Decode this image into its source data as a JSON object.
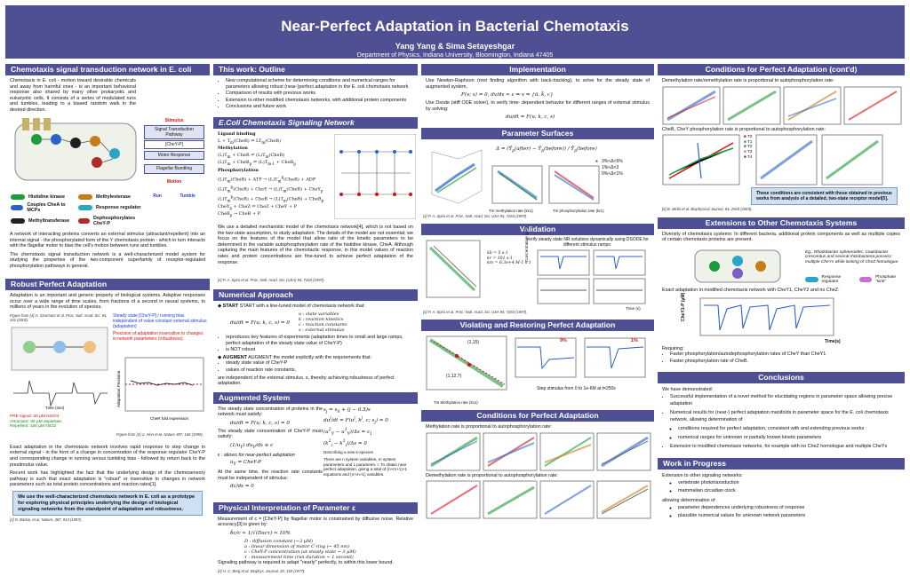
{
  "header": {
    "title": "Near-Perfect Adaptation in Bacterial Chemotaxis",
    "authors": "Yang Yang & Sima Setayeshgar",
    "affiliation": "Department of Physics, Indiana University, Bloomington, Indiana  47405"
  },
  "col1": {
    "network": {
      "heading": "Chemotaxis signal transduction network in E. coli",
      "intro": "Chemotaxis in E. coli - motion toward desirable chemicals and away from harmful ones - is an important behavioral response also shared by many other prokaryotic and eukaryotic cells.  It consists of a series of modulated runs and tumbles, leading to a biased random walk in the desired direction.",
      "pathway": {
        "stimulus": "Stimulus",
        "signal": "Signal Transduction Pathway",
        "cheyp": "[CheY-P]",
        "motor": "Motor Response",
        "flagellar": "Flagellar Bundling",
        "motion": "Motion",
        "run": "Run",
        "tumble": "Tumble"
      },
      "legend": [
        {
          "tag": "CheA",
          "label": "Histidine kinase",
          "color": "#1e9b3a"
        },
        {
          "tag": "CheW",
          "label": "Couples CheA to MCPs",
          "color": "#2a62c9"
        },
        {
          "tag": "CheR",
          "label": "Methyltransferase",
          "color": "#202020"
        },
        {
          "tag": "CheB",
          "label": "Methylesterase",
          "color": "#c77b1a"
        },
        {
          "tag": "CheY",
          "label": "Response regulator",
          "color": "#2aa4c9"
        },
        {
          "tag": "CheZ",
          "label": "Dephosphorylates CheY-P",
          "color": "#b12a2a"
        }
      ],
      "para2": "A network of interacting proteins converts an external stimulus (attractant/repellent) into an internal signal - the phosphorylated form of the Y chemotaxis protein - which in turn interacts with the flagellar motor to bias the cell's motion between runs and tumbles.",
      "para3": "The chemotaxis signal transduction network is a well-characterized model system for studying the properties of the two-component superfamily of receptor-regulated phosphorylation pathways in general."
    },
    "robust": {
      "heading": "Robust Perfect Adaptation",
      "intro": "Adaptation is an important and generic property of biological systems. Adaptive responses occur over a wide range of time scales, from fractions of a second in neural systems, to millions of years in the evolution of species.",
      "fig_cite": "Figure from [4] H. Szurmant et al, Proc. Natl. Acad. Sci. 94, 101 (2002).",
      "steady_note": "Steady state [CheY-P] / running bias independent of value constant external stimulus (adaptation)",
      "precision_note": "Precision of adaptation insensitive to changes in network parameters (robustness)",
      "pre_signal": "PRE signal: 30 µM NiSO4",
      "attractant": "Attractant: 30 µM aspartate",
      "repellent": "Repellent: 100 µM NiCl2",
      "fig2_cite": "Figure from [2] U. Alon et al, Nature 397, 168 (1999).",
      "xaxis": "CheR fold expression",
      "yaxis": "Adaptation Precision",
      "time_label": "Time (min)",
      "para1": "Exact adaptation in the chemotaxis network involves rapid response to step change in external signal - in the form of a change in concentration of the response regulator CheY-P and corresponding change in running versus tumbling bias - followed by return back to the prestimulus value.",
      "para2": "Recent work has highlighted the fact that the underlying design of the chemosensory pathway is such that exact adaptation is \"robust\" or insensitive to changes in network parameters such as total protein concentrations and reaction rates[1].",
      "highlight": "We use the well-characterized chemotaxis network in E. coli as a prototype for exploring physical principles underlying the design of biological signaling networks from the standpoint of adaptation and robustness.",
      "cite": "[1] N. Barkai, et al. Nature, 387, 913 (1997)."
    }
  },
  "col2": {
    "outline": {
      "heading": "This work: Outline",
      "items": [
        "New computational scheme for determining conditions and numerical ranges for parameters allowing robust (near-)perfect adaptation in the E. coli chemotaxis network",
        "Comparison of results with previous works",
        "Extension to other modified chemotaxis networks, with additional protein components",
        "Conclusions and future work"
      ]
    },
    "signaling": {
      "heading": "E.Coli Chemotaxis Signaling Network",
      "labels": [
        "Ligand binding",
        "Methylation",
        "Phosphorylation"
      ],
      "para": "We use a detailed mechanistic model of the chemotaxis network[4], which is not based on the two-state assumption, to study adaptation. The details of the model are not essential; we focus on the features of the model that allow ratio of the kinetic parameters to be determined in the variable autophosphorylation rate of the histidine kinase, CheA. Although capturing the main features of the chemotactic response, in this model values of reaction rates and protein concentrations are fine-tuned to achieve perfect adaptation of the response.",
      "cite": "[4] P. A. Spiro et al. Proc. Natl. Acad. Sci. (USA) 94, 7263 (1997)."
    },
    "numerical": {
      "heading": "Numerical Approach",
      "start": "START with a line-tuned model of chemotaxis network that:",
      "vars": [
        "u : state variables",
        "k : reaction kinetics",
        "c : reaction constants",
        "s : external stimulus"
      ],
      "bullets": [
        "reproduces key features of experiments (adaptation times to small and large ramps, perfect adaptation of the steady state value of CheY-P)",
        "is NOT robust"
      ],
      "augment": "AUGMENT the model explicitly with the requirements that:",
      "aug_items": [
        "steady state value of CheY-P",
        "values of reaction rate constants,"
      ],
      "aug_tail": "are independent of the external stimulus, s, thereby achieving robustness of perfect adaptation."
    },
    "augmented": {
      "heading": "Augmented System",
      "text1": "The steady state concentration of proteins in the network must satisfy:",
      "text2": "The steady state concentration of CheY-P must satisfy:",
      "eps_note": "ε : allows for near-perfect adaptation",
      "side_note": "Describing a new k-species",
      "side_note2": "There are n system variables, m system parameters and 1 parameter, r. To obtain near perfect adaptation, giving a total of (n+m+1)+1 equations and (n+m+1) variables.",
      "text3": "At the same time, the reaction rate constants must be independent of stimulus:"
    },
    "physical": {
      "heading": "Physical Interpretation of Parameter ε",
      "text": "Measurement of c = [CheY-P] by flagellar motor is constrained by diffusive noise. Relative accuracy[3] is given by:",
      "defs": [
        "D : diffusion constant (~3 µM)",
        "a : linear dimension of motor C-ring (~ 45 nm)",
        "c : CheY-P concentration (at steady state ~ 3 µM)",
        "τ : measurement time (run duration ~ 1 second)"
      ],
      "tail": "Signaling pathway is required to adapt \"nearly\" perfectly, to within this lower bound.",
      "cite": "[3] H. C. Berg et al. Biophys. Journal, 20, 193 (1977)."
    }
  },
  "col3": {
    "implementation": {
      "heading": "Implementation",
      "text1": "Use Newton-Raphson (root finding algorithm with back-tracking), to solve for the steady state of augmented system,",
      "text2": "Use Dsode (stiff ODE solver), to verify time- dependent behavior for different ranges of external stimulus  by solving:"
    },
    "surfaces": {
      "heading": "Parameter Surfaces",
      "legend": [
        "3%<Δ<5%",
        "1%<Δ<3",
        "0%<Δ<1%"
      ],
      "xlab1": "Tm methylation rate (ks1)",
      "xlab2": "Tm phosphorylation rate (kr1)",
      "cite": "[4] P. A. Spiro et al. Proc. Natl. Acad. Sci. USA 94, 7263 (1997)."
    },
    "validation": {
      "heading": "Validation",
      "caption": "Verify steady state NR solutions dynamically using DSODE for different stimulus ramps:",
      "ks": [
        "kb = 5 s-1",
        "kr = 101 s-1",
        "km = 6.3e+4 M-1 s-1"
      ],
      "ylab": "Concentration (µM)",
      "xlab": "Time (s)",
      "cite": "[4] P. A. Spiro et al. Proc. Natl. Acad. Sci. USA 94, 7263 (1997)."
    },
    "violating": {
      "heading": "Violating and Restoring Perfect Adaptation",
      "labels": [
        "(1,15)",
        "(1,12.7)",
        "9%",
        "1%"
      ],
      "caption": "Step stimulus from 0 to 1e-6M at t=250s",
      "xlab": "Tm Methylation rate (ks1)"
    },
    "conditions": {
      "heading": "Conditions for Perfect Adaptation",
      "text1": "Methylation rate is proportional to autophosphorylation rate:",
      "text2": "Demethylation rate is proportional to autophosphorylation rate:"
    }
  },
  "col4": {
    "conditions2": {
      "heading": "Conditions for Perfect Adaptation (cont'd)",
      "text1": "Demethylation rate/remethylation rate is proportional to autophosphorylation rate:",
      "text2": "CheB, CheY phosphorylation rate is proportional to autophosphorylation rate:",
      "legend": [
        "T0",
        "T1",
        "T2",
        "T3",
        "T4"
      ],
      "highlight": "These conditions are consistent with those obtained in previous works from analysis of a detailed, two-state receptor model[5].",
      "cite": "[5] B. Mello et al. Biophysical Journal, 84, 2943 (2003)."
    },
    "extensions": {
      "heading": "Extensions to Other Chemotaxis Systems",
      "text1": "Diversity of chemotaxis systems: In different bacteria, additional protein components as well as multiple copies of certain chemotaxis proteins are present.",
      "figcap": "Eg., Rhodobacter sphaeroides, Caulobacter crescentus and several rhizobacteria possess multiple CheYs while lacking of CheZ homologue.",
      "reg_label": "Response regulator",
      "sink_label": "Phosphate \"sink\"",
      "text2": "Exact adaptation in modified chemotaxis network with CheY1, CheY2 and no CheZ:",
      "ylab": "CheY1-P (µM)",
      "xlab": "Time(s)",
      "requiring": "Requiring:",
      "req_items": [
        "Faster phosphorylation/autodephosphorylation rates of CheY than CheY1",
        "Faster phosphorylation rate of CheB."
      ]
    },
    "conclusions": {
      "heading": "Conclusions",
      "intro": "We have demonstrated:",
      "items": [
        "Successful implementation of a novel method for elucidating regions in parameter space allowing precise adaptation",
        "Numerical results for (near-) perfect adaptation manifolds in parameter space for the E. coli chemotaxis network, allowing determination of"
      ],
      "sub": [
        "conditions required for perfect adaptation, consistent with and extending previous works",
        "numerical ranges for unknown or partially known kinetic parameters"
      ],
      "last": "Extension to modified chemotaxis networks, for example with no CheZ homologue and multiple CheYs"
    },
    "work": {
      "heading": "Work in Progress",
      "intro": "Extension to other signaling networks:",
      "items": [
        "vertebrate phototransduction",
        "mammalian circadian clock"
      ],
      "intro2": "allowing determination of",
      "items2": [
        "parameter dependences underlying robustness of response",
        "plausible numerical values for unknown network parameters"
      ]
    }
  }
}
